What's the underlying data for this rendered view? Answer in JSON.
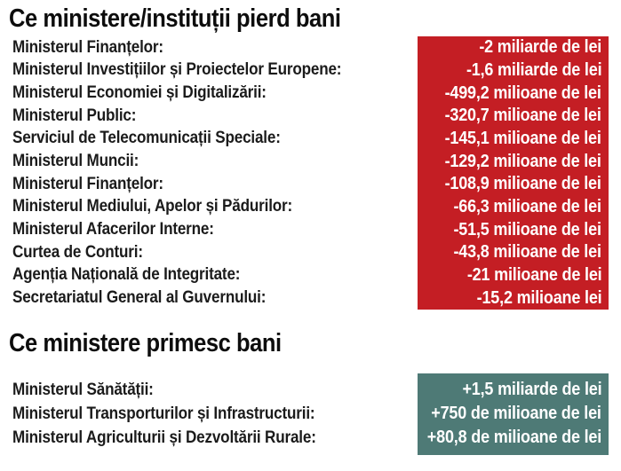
{
  "colors": {
    "negative_panel_bg": "#c41e24",
    "positive_panel_bg": "#4e7a76",
    "label_text": "#1b1b1b",
    "value_text": "#ffffff",
    "background": "#ffffff"
  },
  "sections": [
    {
      "title": "Ce ministere/instituții pierd bani",
      "rows": [
        {
          "label": "Ministerul Finanțelor:",
          "value": "-2 miliarde de lei"
        },
        {
          "label": "Ministerul Investițiilor și Proiectelor Europene:",
          "value": "-1,6 miliarde de lei"
        },
        {
          "label": "Ministerul Economiei și Digitalizării:",
          "value": "-499,2 milioane de lei"
        },
        {
          "label": "Ministerul Public:",
          "value": "-320,7 milioane de lei"
        },
        {
          "label": "Serviciul de Telecomunicații Speciale:",
          "value": "-145,1 milioane de lei"
        },
        {
          "label": "Ministerul Muncii:",
          "value": "-129,2 milioane de lei"
        },
        {
          "label": "Ministerul Finanțelor:",
          "value": "-108,9 milioane de lei"
        },
        {
          "label": "Ministerul Mediului, Apelor și Pădurilor:",
          "value": "-66,3 milioane de lei"
        },
        {
          "label": "Ministerul Afacerilor Interne:",
          "value": "-51,5 milioane de lei"
        },
        {
          "label": "Curtea de Conturi:",
          "value": "-43,8 milioane de lei"
        },
        {
          "label": "Agenția Națională de Integritate:",
          "value": "-21 milioane de lei"
        },
        {
          "label": "Secretariatul General al Guvernului:",
          "value": "-15,2 milioane lei"
        }
      ]
    },
    {
      "title": "Ce ministere primesc bani",
      "rows": [
        {
          "label": "Ministerul Sănătății:",
          "value": "+1,5 miliarde de lei"
        },
        {
          "label": "Ministerul Transporturilor și Infrastructurii:",
          "value": "+750 de milioane de lei"
        },
        {
          "label": "Ministerul Agriculturii și Dezvoltării Rurale:",
          "value": "+80,8 de milioane de lei"
        }
      ]
    }
  ],
  "chart_data": [
    {
      "type": "table",
      "title": "Ce ministere/instituții pierd bani",
      "unit": "milioane de lei",
      "categories": [
        "Ministerul Finanțelor",
        "Ministerul Investițiilor și Proiectelor Europene",
        "Ministerul Economiei și Digitalizării",
        "Ministerul Public",
        "Serviciul de Telecomunicații Speciale",
        "Ministerul Muncii",
        "Ministerul Finanțelor",
        "Ministerul Mediului, Apelor și Pădurilor",
        "Ministerul Afacerilor Interne",
        "Curtea de Conturi",
        "Agenția Națională de Integritate",
        "Secretariatul General al Guvernului"
      ],
      "values": [
        -2000,
        -1600,
        -499.2,
        -320.7,
        -145.1,
        -129.2,
        -108.9,
        -66.3,
        -51.5,
        -43.8,
        -21,
        -15.2
      ],
      "value_labels": [
        "-2 miliarde de lei",
        "-1,6 miliarde de lei",
        "-499,2 milioane de lei",
        "-320,7 milioane de lei",
        "-145,1 milioane de lei",
        "-129,2 milioane de lei",
        "-108,9 milioane de lei",
        "-66,3 milioane de lei",
        "-51,5 milioane de lei",
        "-43,8 milioane de lei",
        "-21 milioane de lei",
        "-15,2 milioane lei"
      ]
    },
    {
      "type": "table",
      "title": "Ce ministere primesc bani",
      "unit": "milioane de lei",
      "categories": [
        "Ministerul Sănătății",
        "Ministerul Transporturilor și Infrastructurii",
        "Ministerul Agriculturii și Dezvoltării Rurale"
      ],
      "values": [
        1500,
        750,
        80.8
      ],
      "value_labels": [
        "+1,5 miliarde de lei",
        "+750 de milioane de lei",
        "+80,8 de milioane de lei"
      ]
    }
  ]
}
